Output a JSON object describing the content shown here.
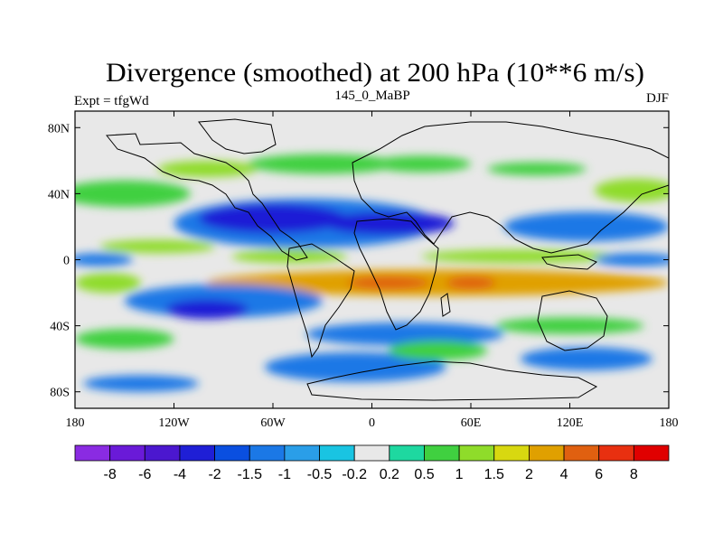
{
  "chart_data": {
    "type": "heatmap",
    "title": "Divergence (smoothed) at 200 hPa (10**6 m/s)",
    "left_string": "Expt = tfgWd",
    "center_string": "145_0_MaBP",
    "right_string": "DJF",
    "x_tick_labels": [
      "180",
      "120W",
      "60W",
      "0",
      "60E",
      "120E",
      "180"
    ],
    "x_tick_values": [
      -180,
      -120,
      -60,
      0,
      60,
      120,
      180
    ],
    "y_tick_labels": [
      "80N",
      "40N",
      "0",
      "40S",
      "80S"
    ],
    "y_tick_values": [
      80,
      40,
      0,
      -40,
      -80
    ],
    "xlim": [
      -180,
      180
    ],
    "ylim": [
      -90,
      90
    ],
    "colorbar": {
      "levels": [
        "-8",
        "-6",
        "-4",
        "-2",
        "-1.5",
        "-1",
        "-0.5",
        "-0.2",
        "0.2",
        "0.5",
        "1",
        "1.5",
        "2",
        "4",
        "6",
        "8"
      ],
      "colors": [
        "#8a2be2",
        "#6a1ad8",
        "#4b17cf",
        "#1f1fd6",
        "#0a4fe0",
        "#1b78e6",
        "#2a9ee8",
        "#19c4e2",
        "#e8e8e8",
        "#1ed8a0",
        "#40d040",
        "#8fdc2a",
        "#d8d810",
        "#e0a000",
        "#e06010",
        "#e83010",
        "#e00000"
      ]
    },
    "regions": [
      {
        "value": 0.75,
        "lon": -150,
        "lat": 40,
        "w": 80,
        "h": 16
      },
      {
        "value": 1.2,
        "lon": -100,
        "lat": 55,
        "w": 60,
        "h": 10
      },
      {
        "value": 0.75,
        "lon": -30,
        "lat": 58,
        "w": 90,
        "h": 12
      },
      {
        "value": 0.75,
        "lon": 30,
        "lat": 58,
        "w": 60,
        "h": 10
      },
      {
        "value": 0.75,
        "lon": 100,
        "lat": 55,
        "w": 60,
        "h": 8
      },
      {
        "value": 1.2,
        "lon": 160,
        "lat": 42,
        "w": 50,
        "h": 14
      },
      {
        "value": 1.2,
        "lon": -130,
        "lat": 8,
        "w": 70,
        "h": 8
      },
      {
        "value": 1.2,
        "lon": -50,
        "lat": 2,
        "w": 70,
        "h": 8
      },
      {
        "value": 1.2,
        "lon": 90,
        "lat": 2,
        "w": 120,
        "h": 8
      },
      {
        "value": -1.2,
        "lon": -40,
        "lat": 22,
        "w": 160,
        "h": 30
      },
      {
        "value": -2.5,
        "lon": -60,
        "lat": 25,
        "w": 90,
        "h": 18
      },
      {
        "value": -2.5,
        "lon": 10,
        "lat": 22,
        "w": 80,
        "h": 14
      },
      {
        "value": -1.2,
        "lon": 130,
        "lat": 20,
        "w": 100,
        "h": 18
      },
      {
        "value": -1.2,
        "lon": -165,
        "lat": 0,
        "w": 40,
        "h": 8
      },
      {
        "value": -1.2,
        "lon": 160,
        "lat": 0,
        "w": 50,
        "h": 8
      },
      {
        "value": 3.0,
        "lon": 40,
        "lat": -14,
        "w": 280,
        "h": 16
      },
      {
        "value": 5.0,
        "lon": 10,
        "lat": -14,
        "w": 50,
        "h": 8
      },
      {
        "value": 5.0,
        "lon": 60,
        "lat": -14,
        "w": 30,
        "h": 8
      },
      {
        "value": 1.2,
        "lon": -160,
        "lat": -14,
        "w": 40,
        "h": 12
      },
      {
        "value": -1.2,
        "lon": -90,
        "lat": -25,
        "w": 120,
        "h": 20
      },
      {
        "value": -2.5,
        "lon": -100,
        "lat": -30,
        "w": 50,
        "h": 12
      },
      {
        "value": -1.2,
        "lon": 20,
        "lat": -45,
        "w": 120,
        "h": 14
      },
      {
        "value": -1.2,
        "lon": -10,
        "lat": -65,
        "w": 110,
        "h": 18
      },
      {
        "value": 0.75,
        "lon": -150,
        "lat": -48,
        "w": 60,
        "h": 12
      },
      {
        "value": 0.75,
        "lon": 40,
        "lat": -55,
        "w": 60,
        "h": 12
      },
      {
        "value": -1.2,
        "lon": 130,
        "lat": -60,
        "w": 80,
        "h": 14
      },
      {
        "value": 0.75,
        "lon": 120,
        "lat": -40,
        "w": 90,
        "h": 10
      },
      {
        "value": -1.2,
        "lon": -140,
        "lat": -75,
        "w": 70,
        "h": 10
      }
    ]
  }
}
